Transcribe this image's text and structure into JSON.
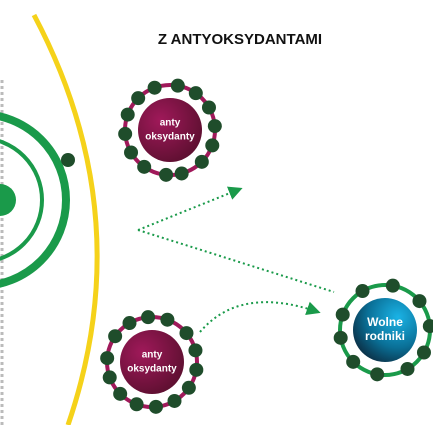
{
  "title": "Z ANTYOKSYDANTAMI",
  "nodes": [
    {
      "lines": [
        "anty",
        "oksydanty"
      ]
    },
    {
      "lines": [
        "anty",
        "oksydanty"
      ]
    },
    {
      "lines": [
        "Wolne",
        "rodniki"
      ]
    }
  ]
}
